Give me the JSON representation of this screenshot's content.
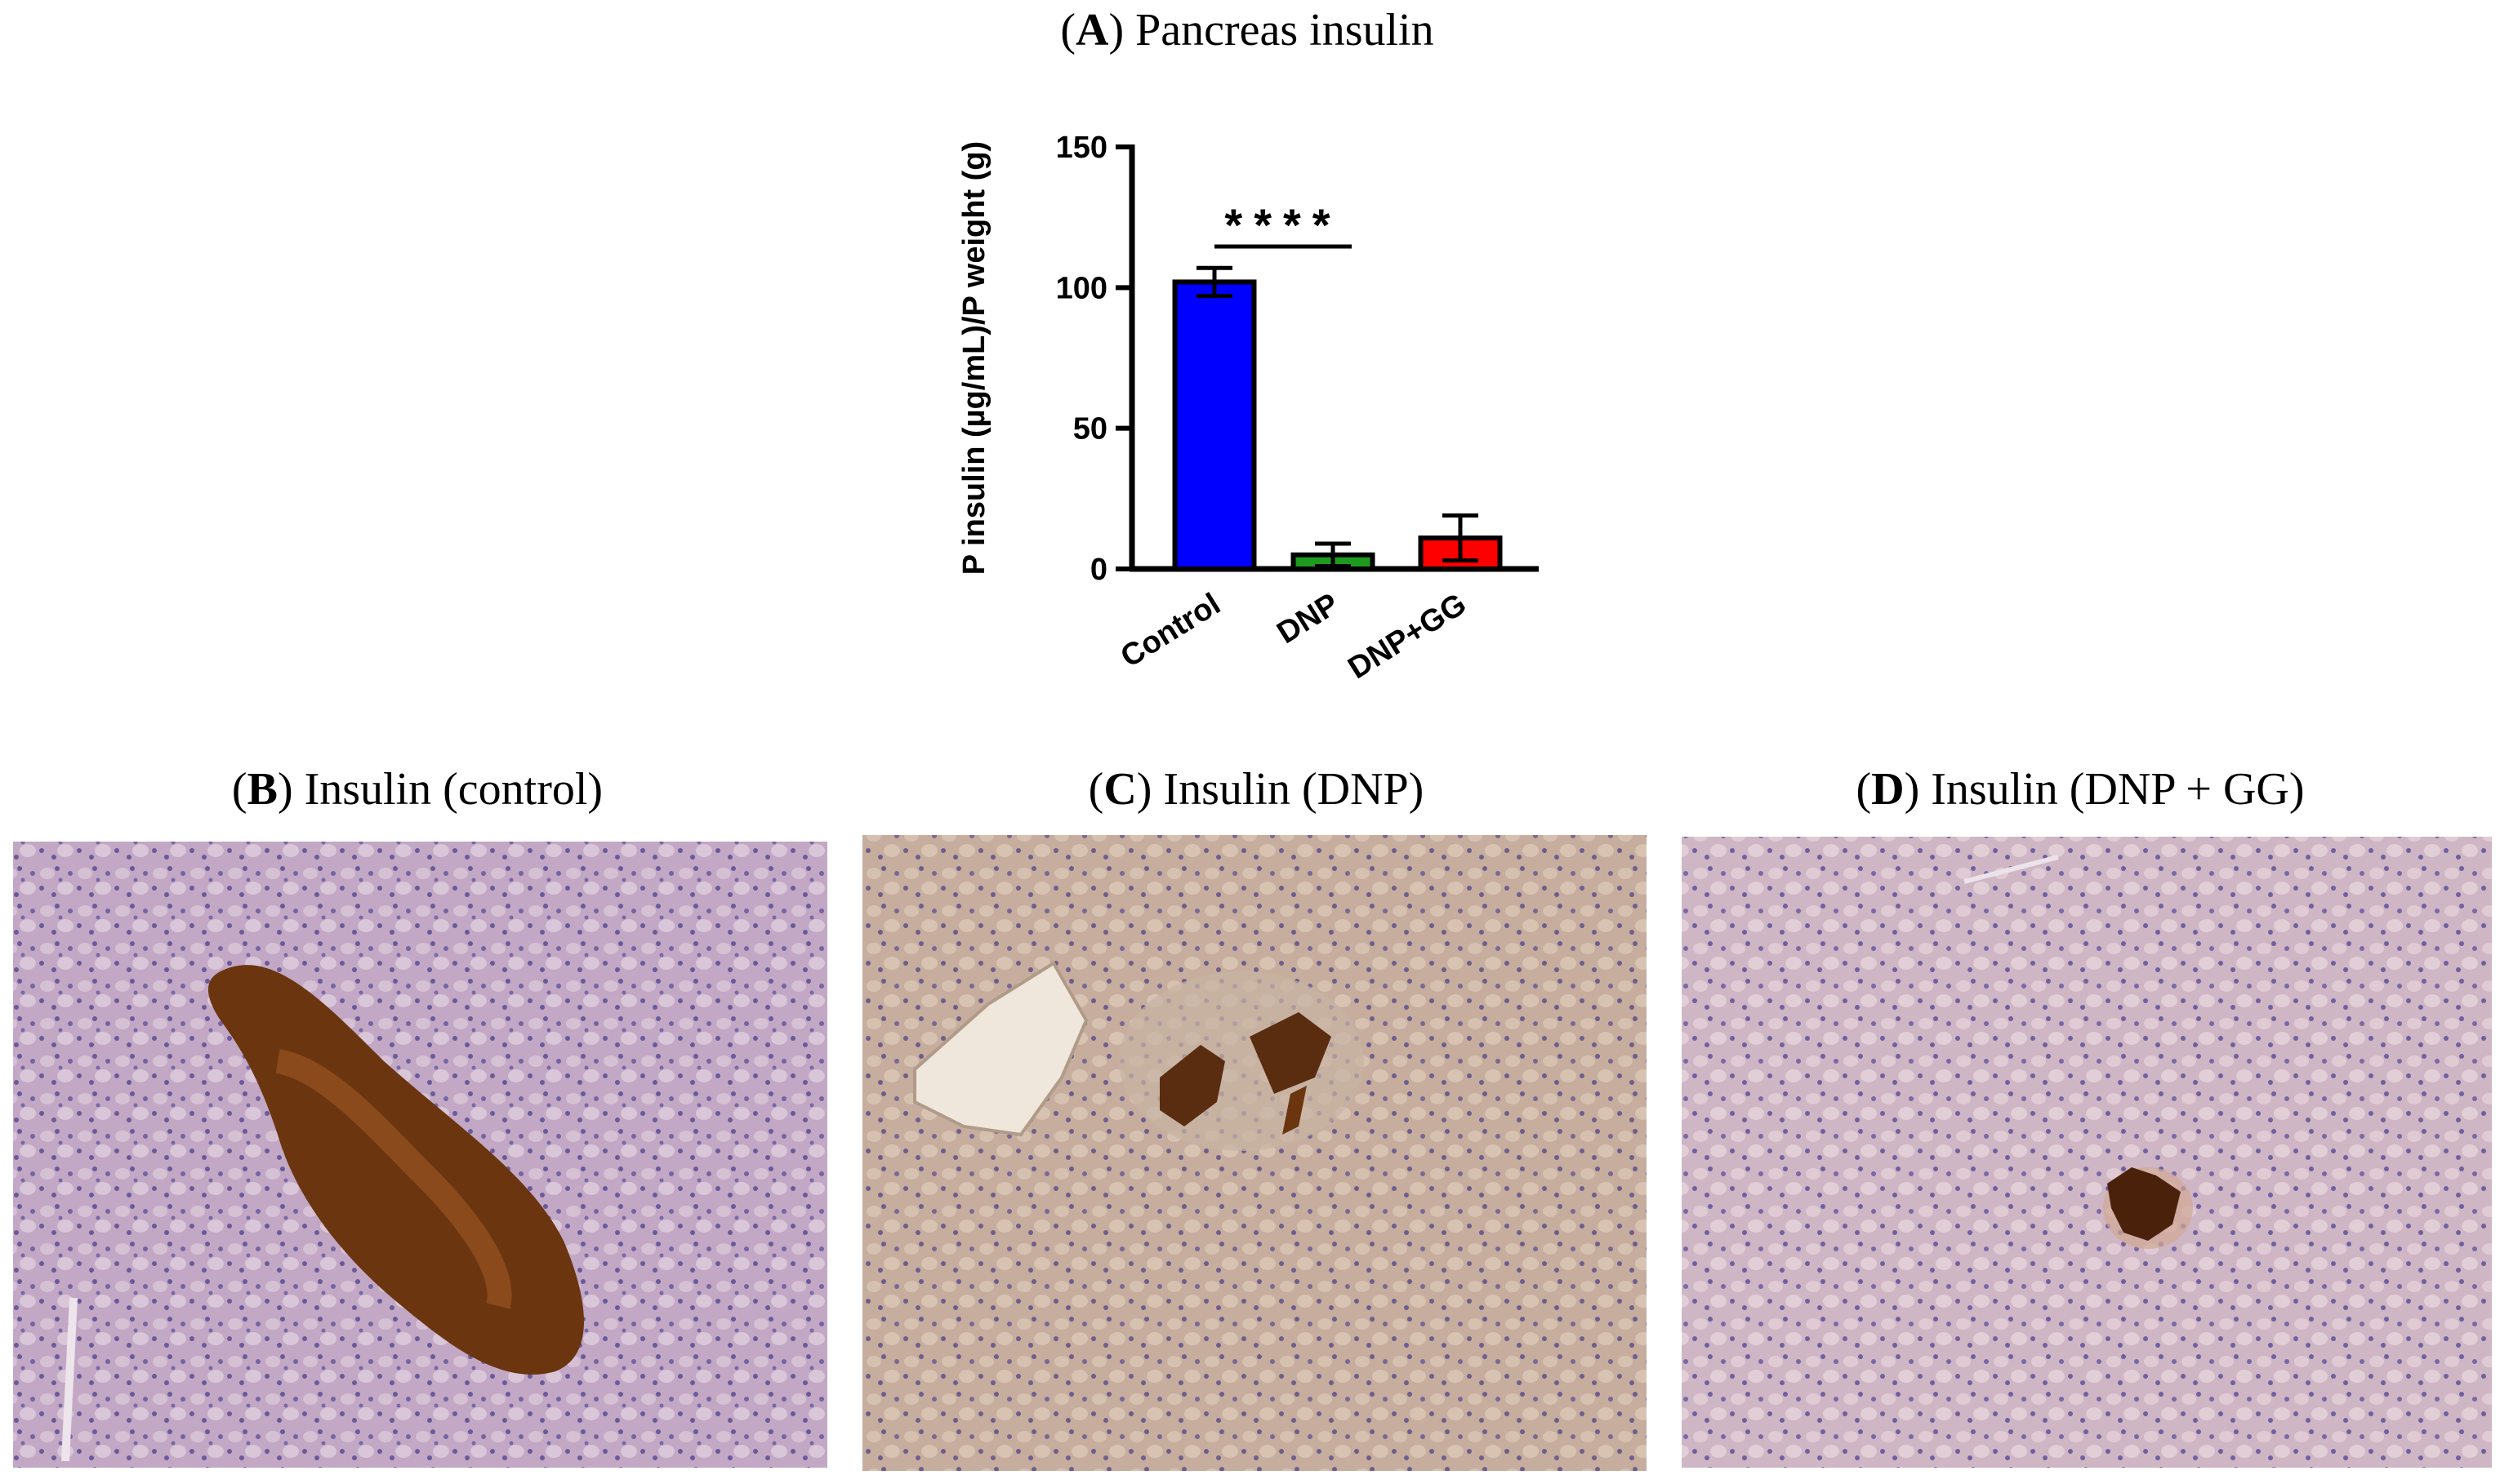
{
  "chart_data": {
    "type": "bar",
    "title_parts": [
      "(",
      "A",
      ") Pancreas insulin"
    ],
    "ylabel": "P insulin (µg/mL)/P weight (g)",
    "categories": [
      "Control",
      "DNP",
      "DNP+GG"
    ],
    "values": [
      102,
      5,
      11
    ],
    "errors": [
      5,
      4,
      8
    ],
    "colors": [
      "#0000ff",
      "#1e9a1e",
      "#ff0000"
    ],
    "ylim": [
      0,
      150
    ],
    "yticks": [
      0,
      50,
      100,
      150
    ],
    "annotation": "****"
  },
  "panels": [
    {
      "title_parts": [
        "(",
        "B",
        ") Insulin (control)"
      ]
    },
    {
      "title_parts": [
        "(",
        "C",
        ") Insulin (DNP)"
      ]
    },
    {
      "title_parts": [
        "(",
        "D",
        ") Insulin (DNP + GG)"
      ]
    }
  ]
}
